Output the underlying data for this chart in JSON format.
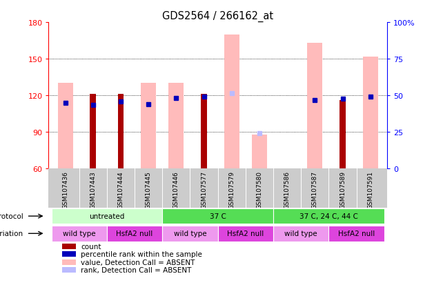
{
  "title": "GDS2564 / 266162_at",
  "samples": [
    "GSM107436",
    "GSM107443",
    "GSM107444",
    "GSM107445",
    "GSM107446",
    "GSM107577",
    "GSM107579",
    "GSM107580",
    "GSM107586",
    "GSM107587",
    "GSM107589",
    "GSM107591"
  ],
  "count_values": [
    null,
    121,
    121,
    null,
    null,
    121,
    null,
    null,
    null,
    null,
    116,
    null
  ],
  "count_absent": [
    130,
    null,
    null,
    130,
    130,
    null,
    170,
    88,
    null,
    163,
    null,
    152
  ],
  "percentile_values": [
    114,
    112,
    115,
    113,
    118,
    119,
    null,
    null,
    null,
    116,
    117,
    119
  ],
  "percentile_absent": [
    null,
    null,
    null,
    null,
    null,
    null,
    122,
    89,
    null,
    null,
    null,
    null
  ],
  "ylim_left": [
    60,
    180
  ],
  "ylim_right": [
    0,
    100
  ],
  "yticks_left": [
    60,
    90,
    120,
    150,
    180
  ],
  "ytick_labels_left": [
    "60",
    "90",
    "120",
    "150",
    "180"
  ],
  "yticks_right": [
    0,
    25,
    50,
    75,
    100
  ],
  "ytick_labels_right": [
    "0",
    "25",
    "50",
    "75",
    "100%"
  ],
  "protocol_info": [
    {
      "start": 0,
      "end": 4,
      "label": "untreated",
      "color": "#ccffcc"
    },
    {
      "start": 4,
      "end": 8,
      "label": "37 C",
      "color": "#55dd55"
    },
    {
      "start": 8,
      "end": 12,
      "label": "37 C, 24 C, 44 C",
      "color": "#55dd55"
    }
  ],
  "genotype_info": [
    {
      "start": 0,
      "end": 2,
      "label": "wild type",
      "color": "#ee99ee"
    },
    {
      "start": 2,
      "end": 4,
      "label": "HsfA2 null",
      "color": "#dd44dd"
    },
    {
      "start": 4,
      "end": 6,
      "label": "wild type",
      "color": "#ee99ee"
    },
    {
      "start": 6,
      "end": 8,
      "label": "HsfA2 null",
      "color": "#dd44dd"
    },
    {
      "start": 8,
      "end": 10,
      "label": "wild type",
      "color": "#ee99ee"
    },
    {
      "start": 10,
      "end": 12,
      "label": "HsfA2 null",
      "color": "#dd44dd"
    }
  ],
  "count_color": "#aa0000",
  "percentile_color": "#0000bb",
  "absent_value_color": "#ffbbbb",
  "absent_rank_color": "#bbbbff",
  "plot_bg": "#ffffff",
  "xtick_bg": "#cccccc",
  "legend_items": [
    {
      "label": "count",
      "color": "#aa0000",
      "marker": "s"
    },
    {
      "label": "percentile rank within the sample",
      "color": "#0000bb",
      "marker": "s"
    },
    {
      "label": "value, Detection Call = ABSENT",
      "color": "#ffbbbb",
      "marker": "s"
    },
    {
      "label": "rank, Detection Call = ABSENT",
      "color": "#bbbbff",
      "marker": "s"
    }
  ]
}
